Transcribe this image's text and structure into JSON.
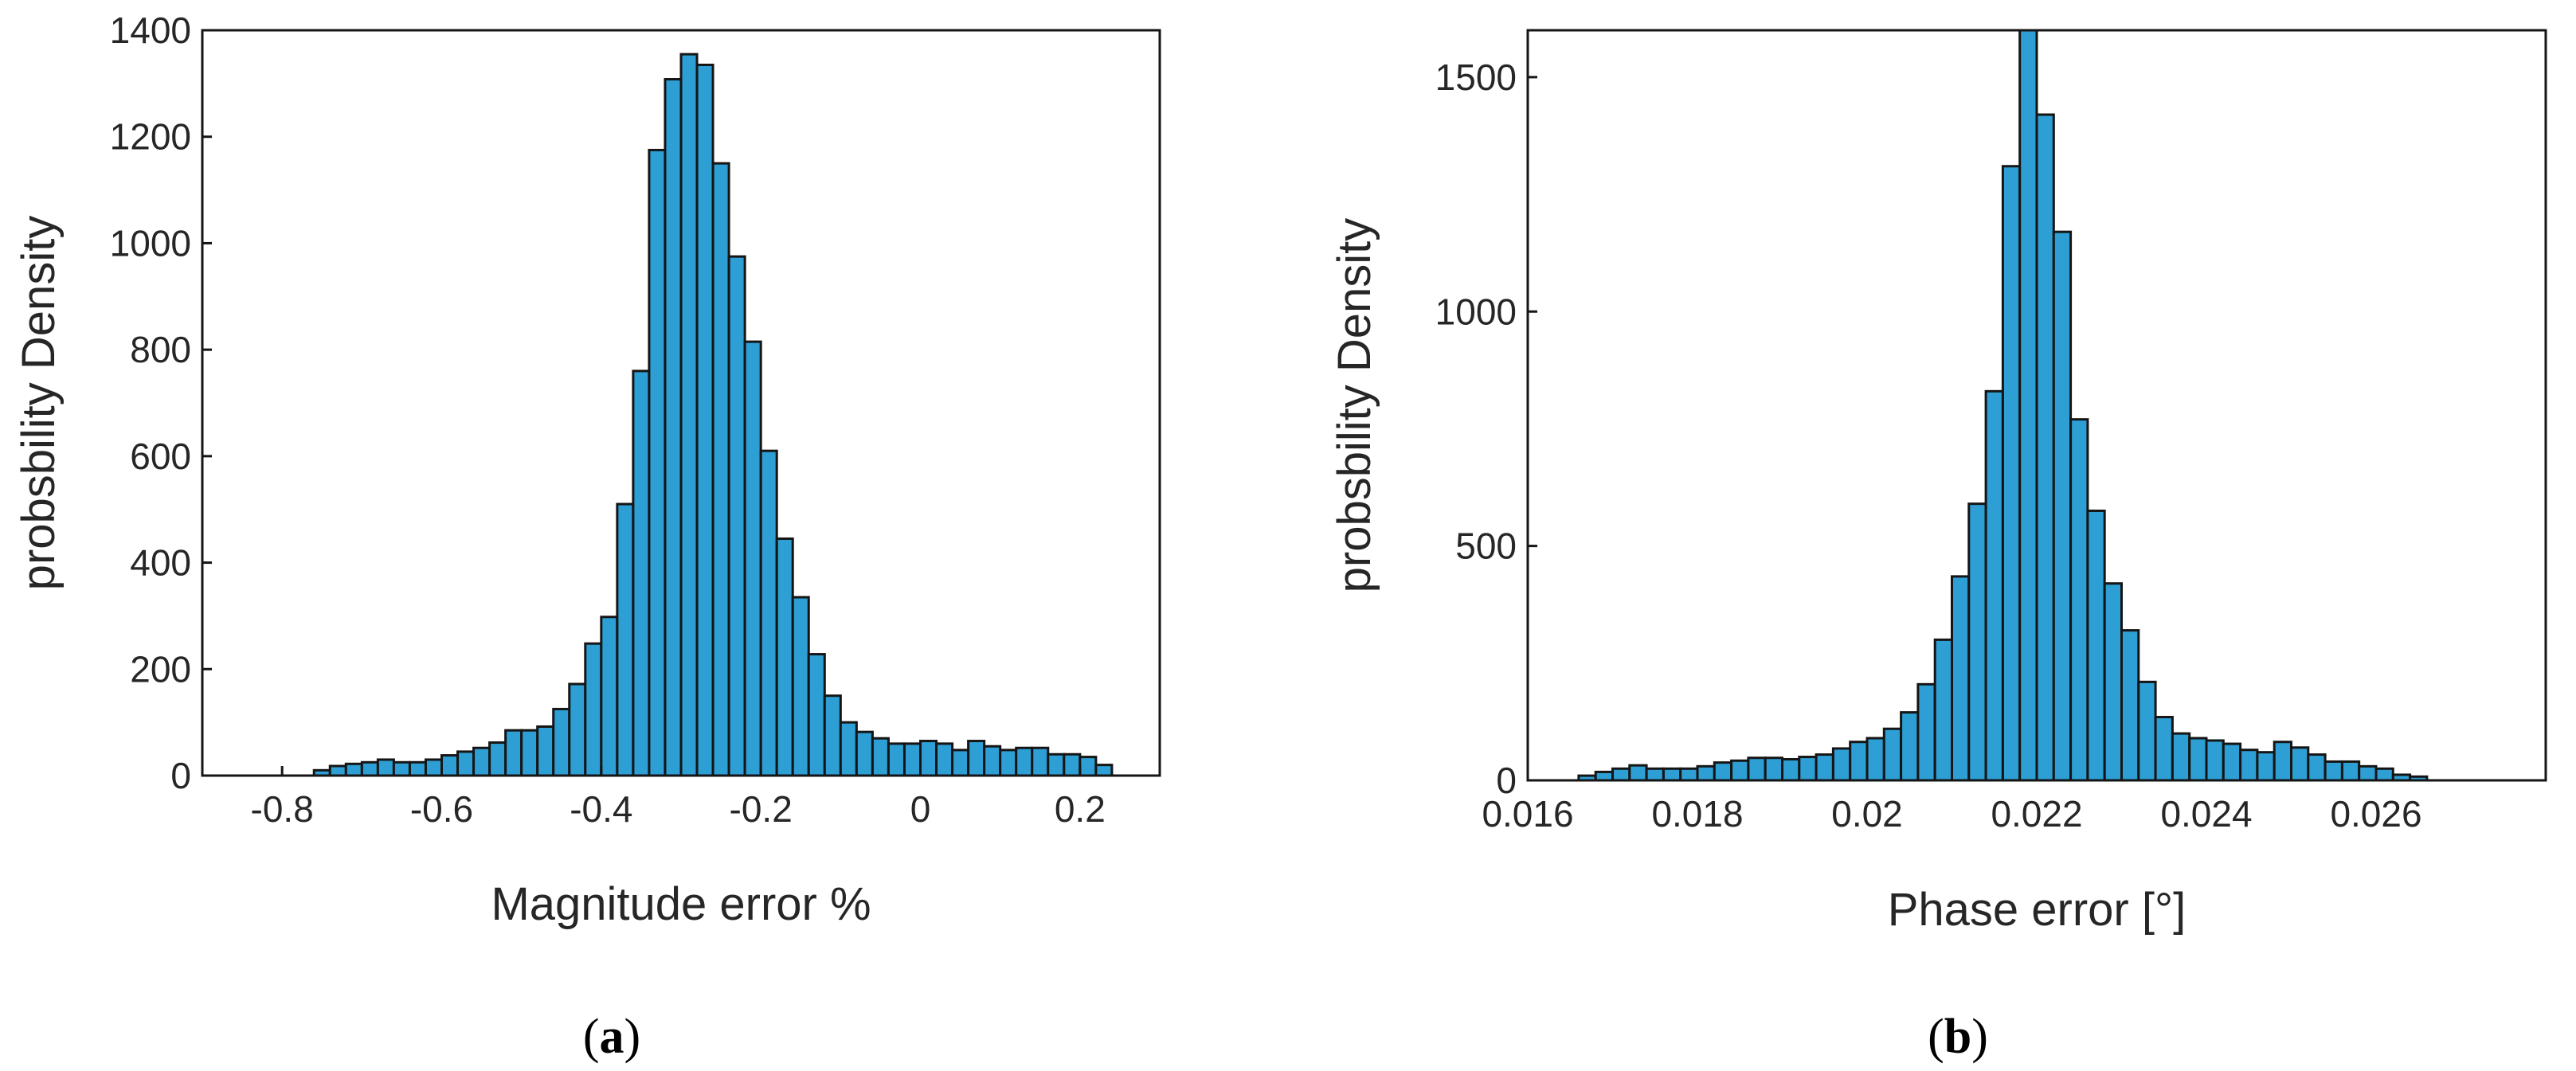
{
  "chart_data": [
    {
      "type": "bar",
      "panel_label": "a",
      "xlabel": "Magnitude error %",
      "ylabel": "probsbility Density",
      "xlim": [
        -0.9,
        0.3
      ],
      "ylim": [
        0,
        1400
      ],
      "xticks": [
        -0.8,
        -0.6,
        -0.4,
        -0.2,
        0,
        0.2
      ],
      "xtick_labels": [
        "-0.8",
        "-0.6",
        "-0.4",
        "-0.2",
        "0",
        "0.2"
      ],
      "yticks": [
        0,
        200,
        400,
        600,
        800,
        1000,
        1200,
        1400
      ],
      "ytick_labels": [
        "0",
        "200",
        "400",
        "600",
        "800",
        "1000",
        "1200",
        "1400"
      ],
      "grid": false,
      "bin_start": -0.76,
      "bin_width": 0.02,
      "values": [
        10,
        18,
        22,
        25,
        30,
        25,
        25,
        30,
        38,
        45,
        52,
        62,
        85,
        85,
        92,
        125,
        172,
        248,
        298,
        510,
        760,
        1175,
        1308,
        1355,
        1335,
        1150,
        975,
        815,
        610,
        445,
        335,
        228,
        150,
        100,
        82,
        70,
        60,
        60,
        65,
        60,
        48,
        65,
        55,
        48,
        52,
        52,
        40,
        40,
        35,
        20
      ]
    },
    {
      "type": "bar",
      "panel_label": "b",
      "xlabel": "Phase error [°]",
      "ylabel": "probsbility Density",
      "xlim": [
        0.016,
        0.028
      ],
      "ylim": [
        0,
        1600
      ],
      "xticks": [
        0.016,
        0.018,
        0.02,
        0.022,
        0.024,
        0.026
      ],
      "xtick_labels": [
        "0.016",
        "0.018",
        "0.02",
        "0.022",
        "0.024",
        "0.026"
      ],
      "yticks": [
        0,
        500,
        1000,
        1500
      ],
      "ytick_labels": [
        "0",
        "500",
        "1000",
        "1500"
      ],
      "grid": false,
      "bin_start": 0.0166,
      "bin_width": 0.0002,
      "values": [
        10,
        18,
        25,
        32,
        25,
        25,
        25,
        30,
        38,
        42,
        48,
        48,
        45,
        50,
        55,
        68,
        82,
        90,
        110,
        145,
        205,
        300,
        435,
        590,
        830,
        1310,
        1600,
        1420,
        1170,
        770,
        575,
        420,
        320,
        210,
        135,
        100,
        90,
        85,
        78,
        65,
        60,
        82,
        70,
        55,
        40,
        40,
        30,
        25,
        12,
        8
      ]
    }
  ],
  "captions": [
    "a",
    "b"
  ]
}
